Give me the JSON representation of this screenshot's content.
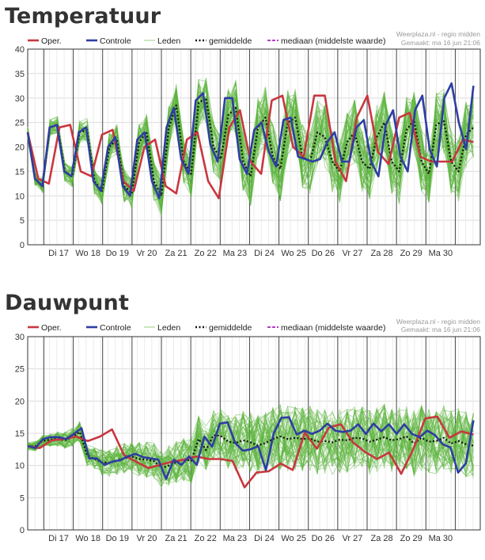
{
  "source_line1": "Weerplaza.nl - regio midden",
  "source_line2": "Gemaakt: ma 16 jun 21:06",
  "legend": {
    "oper": "Oper.",
    "controle": "Controle",
    "leden": "Leden",
    "gemiddelde": "gemiddelde",
    "mediaan": "mediaan (middelste waarde)"
  },
  "colors": {
    "oper": "#c8373f",
    "controle": "#2e3da3",
    "leden": "#5bb33c",
    "leden_legend": "#b8e0a8",
    "gemiddelde": "#111111",
    "mediaan": "#b040c0"
  },
  "chart_data": [
    {
      "type": "line",
      "title": "Temperatuur",
      "ylim": [
        0,
        40
      ],
      "yticks": [
        0,
        5,
        10,
        15,
        20,
        25,
        30,
        35,
        40
      ],
      "grid": true,
      "legend_position": "top",
      "day_labels": [
        "Di 17",
        "Wo 18",
        "Do 19",
        "Vr 20",
        "Za 21",
        "Zo 22",
        "Ma 23",
        "Di 24",
        "Wo 25",
        "Do 26",
        "Vr 27",
        "Za 28",
        "Zo 29",
        "Ma 30"
      ],
      "members": 50,
      "series": [
        {
          "name": "Oper.",
          "values": [
            23,
            13.5,
            12.5,
            24,
            24.5,
            15,
            14,
            22.5,
            23.5,
            13,
            11,
            20,
            21.5,
            12,
            10.5,
            21.5,
            23,
            13,
            9.5,
            24,
            27.5,
            17,
            14.5,
            29.5,
            30.5,
            20,
            18,
            30.5,
            30.5,
            17,
            13,
            26,
            30.5,
            19,
            16.5,
            26,
            27,
            18,
            17,
            17,
            17,
            21.5,
            21
          ]
        },
        {
          "name": "Controle",
          "values": [
            23,
            13.5,
            12,
            24,
            24.5,
            15,
            14,
            23,
            24,
            13,
            11,
            20,
            22,
            12,
            10,
            21.5,
            23,
            13,
            9.5,
            24,
            28,
            17.5,
            14.5,
            29.5,
            31,
            20.5,
            17,
            30,
            30,
            17.5,
            14.5,
            23.5,
            25,
            19,
            16,
            25.5,
            26,
            18,
            17.5,
            17,
            17.5,
            21,
            23,
            17,
            17,
            24,
            25.5,
            17,
            14,
            24.5,
            27.5,
            18,
            15,
            27.5,
            30.5,
            19.5,
            16,
            30,
            33,
            25,
            19.5,
            32.5
          ]
        },
        {
          "name": "gemiddelde",
          "values": [
            23,
            13.5,
            12,
            24,
            24.5,
            15,
            14,
            23,
            23.5,
            13,
            11,
            20,
            21.5,
            12,
            10.5,
            21,
            23,
            13,
            10,
            24,
            28.5,
            17,
            14.5,
            29,
            30,
            20,
            17.5,
            26.5,
            28,
            17,
            14,
            24,
            26,
            18,
            15.5,
            25,
            26,
            18,
            17,
            23,
            22,
            17,
            15,
            21,
            23,
            17,
            15.5,
            22,
            25,
            17,
            15,
            23.5,
            25.5,
            17,
            14.5,
            24.5,
            25.5,
            17,
            15,
            22.5,
            24
          ]
        },
        {
          "name": "mediaan (middelste waarde)",
          "values": [
            23,
            13.5,
            12,
            24,
            24.5,
            15,
            14,
            23,
            23.5,
            13,
            11,
            20,
            21.5,
            12,
            10.5,
            21,
            23,
            13,
            10,
            24,
            28.5,
            17,
            14.5,
            29,
            30,
            20,
            17.5,
            26.5,
            28,
            17,
            14,
            24,
            26,
            18,
            15.5,
            25,
            26,
            18,
            17,
            23,
            22,
            17,
            15,
            21,
            23,
            17,
            15.5,
            22,
            25,
            17,
            15,
            23.5,
            25.5,
            17,
            14.5,
            24.5,
            25.5,
            17,
            15,
            22.5,
            24
          ]
        }
      ]
    },
    {
      "type": "line",
      "title": "Dauwpunt",
      "ylim": [
        0,
        30
      ],
      "yticks": [
        0,
        5,
        10,
        15,
        20,
        25,
        30
      ],
      "grid": true,
      "legend_position": "top",
      "day_labels": [
        "Di 17",
        "Wo 18",
        "Do 19",
        "Vr 20",
        "Za 21",
        "Zo 22",
        "Ma 23",
        "Di 24",
        "Wo 25",
        "Do 26",
        "Vr 27",
        "Za 28",
        "Zo 29",
        "Ma 30"
      ],
      "members": 50,
      "series": [
        {
          "name": "Oper.",
          "values": [
            13,
            12.7,
            13.9,
            14.1,
            14.5,
            13.8,
            14.5,
            15.6,
            11.6,
            10.6,
            9.6,
            10.1,
            10.6,
            10.9,
            11.4,
            11,
            11,
            10.7,
            6.6,
            8.9,
            9.1,
            10.3,
            9.3,
            15.1,
            12.6,
            15.9,
            16.4,
            13.6,
            12.1,
            11,
            12,
            8.7,
            12.5,
            17.3,
            17.6,
            14.3,
            15.3,
            14.8
          ]
        },
        {
          "name": "Controle",
          "values": [
            13,
            12.7,
            14.1,
            14.4,
            14.4,
            14.1,
            14.9,
            15.8,
            11.1,
            11.1,
            10.1,
            10.6,
            10.8,
            11.4,
            11.8,
            11.3,
            11.1,
            10.9,
            7.9,
            10.9,
            10.1,
            11.4,
            10.1,
            14.5,
            12.9,
            16.5,
            16.7,
            13.5,
            12.3,
            12.5,
            13,
            9.3,
            15,
            17.4,
            17.5,
            14.8,
            15.4,
            14.9,
            15.4,
            16.5,
            15.4,
            15.2,
            15.4,
            16.4,
            14.9,
            16.5,
            15.3,
            16.4,
            14.9,
            16.4,
            14.9,
            14.4,
            15.4,
            14.7,
            13.3,
            12.8,
            8.9,
            10.3,
            17
          ]
        },
        {
          "name": "gemiddelde",
          "values": [
            13,
            13,
            13.8,
            14,
            14.1,
            13.9,
            14.4,
            15.2,
            11.6,
            11,
            10.5,
            10.4,
            10.8,
            11.1,
            11.4,
            11,
            10.9,
            10.7,
            9.6,
            10,
            10.5,
            11,
            10.7,
            14.1,
            12.4,
            14.7,
            14.6,
            13.7,
            13.5,
            13.9,
            13.6,
            13.1,
            13.5,
            14.1,
            14.5,
            14.1,
            14.3,
            14.1,
            14.2,
            13.7,
            13.8,
            13.6,
            14,
            13.9,
            14.3,
            14.2,
            13.7,
            14,
            14.4,
            13.9,
            14.1,
            14.5,
            13.4,
            14.3,
            13.7,
            13.8,
            14.3,
            13.4,
            13.8,
            13.3,
            13.1
          ]
        },
        {
          "name": "mediaan (middelste waarde)",
          "values": [
            13,
            13,
            13.8,
            14,
            14.1,
            13.9,
            14.4,
            15.2,
            11.6,
            11,
            10.5,
            10.4,
            10.8,
            11.1,
            11.4,
            11,
            10.9,
            10.7,
            9.6,
            10,
            10.5,
            11,
            10.7,
            14.1,
            12.4,
            14.7,
            14.6,
            13.7,
            13.5,
            13.9,
            13.6,
            13.1,
            13.5,
            14.1,
            14.5,
            14.1,
            14.3,
            14.1,
            14.2,
            13.7,
            13.8,
            13.6,
            14,
            13.9,
            14.3,
            14.2,
            13.7,
            14,
            14.4,
            13.9,
            14.1,
            14.5,
            13.4,
            14.3,
            13.7,
            13.8,
            14.3,
            13.4,
            13.8,
            13.3,
            13.1
          ]
        }
      ]
    }
  ]
}
